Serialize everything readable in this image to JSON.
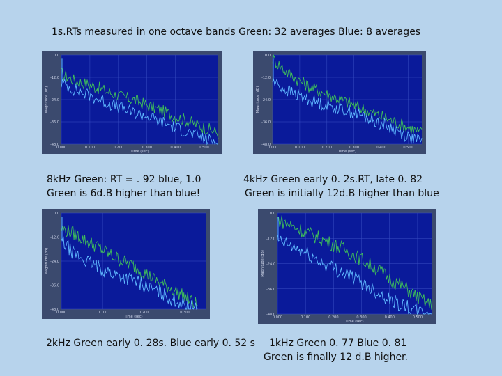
{
  "title": "1s.RTs measured in one octave bands   Green: 32 averages    Blue: 8 averages",
  "captions": {
    "p1": [
      "8kHz Green: RT = . 92 blue, 1.0",
      "Green is 6d.B higher than blue!"
    ],
    "p2": [
      "4kHz Green early 0. 2s.RT, late 0. 82",
      "Green is initially 12d.B higher than blue"
    ],
    "p3": [
      "2kHz Green early 0. 28s. Blue early 0. 52 s"
    ],
    "p4": [
      "1kHz Green 0. 77 Blue 0. 81",
      "Green is finally 12 d.B higher."
    ]
  },
  "colors": {
    "background": "#b7d3ec",
    "panel_frame": "#3b4a6e",
    "plot_bg": "#0a1a9a",
    "grid": "#3a4fc4",
    "green_series": "#3fbf5a",
    "blue_series": "#5fb8ff"
  },
  "chart_data": [
    {
      "type": "line",
      "ylabel": "Magnitude (dB)",
      "xlabel": "Time (sec)",
      "ylim": [
        -48,
        0
      ],
      "xlim": [
        0,
        0.55
      ],
      "x_ticks": [
        "0.000",
        "0.100",
        "0.200",
        "0.300",
        "0.400",
        "0.500"
      ],
      "y_ticks": [
        "0.0",
        "-12.0",
        "-24.0",
        "-36.0",
        "-48.0"
      ],
      "series": [
        {
          "color": "green",
          "x": [
            0,
            0.05,
            0.1,
            0.15,
            0.2,
            0.25,
            0.3,
            0.35,
            0.4,
            0.45,
            0.5,
            0.55
          ],
          "y": [
            -10,
            -14,
            -16,
            -19,
            -22,
            -24,
            -27,
            -30,
            -33,
            -36,
            -39,
            -42
          ]
        },
        {
          "color": "blue",
          "x": [
            0,
            0.05,
            0.1,
            0.15,
            0.2,
            0.25,
            0.3,
            0.35,
            0.4,
            0.45,
            0.5,
            0.55
          ],
          "y": [
            -15,
            -19,
            -22,
            -25,
            -28,
            -31,
            -33,
            -36,
            -39,
            -42,
            -45,
            -47
          ]
        }
      ]
    },
    {
      "type": "line",
      "ylabel": "Magnitude (dB)",
      "xlabel": "Time (sec)",
      "ylim": [
        -48,
        0
      ],
      "xlim": [
        0,
        0.55
      ],
      "x_ticks": [
        "0.000",
        "0.100",
        "0.200",
        "0.300",
        "0.400",
        "0.500"
      ],
      "y_ticks": [
        "0.0",
        "-12.0",
        "-24.0",
        "-36.0",
        "-48.0"
      ],
      "series": [
        {
          "color": "green",
          "x": [
            0,
            0.05,
            0.1,
            0.15,
            0.2,
            0.25,
            0.3,
            0.35,
            0.4,
            0.45,
            0.5,
            0.55
          ],
          "y": [
            -2,
            -9,
            -14,
            -18,
            -21,
            -24,
            -27,
            -30,
            -33,
            -36,
            -39,
            -42
          ]
        },
        {
          "color": "blue",
          "x": [
            0,
            0.05,
            0.1,
            0.15,
            0.2,
            0.25,
            0.3,
            0.35,
            0.4,
            0.45,
            0.5,
            0.55
          ],
          "y": [
            -14,
            -19,
            -22,
            -25,
            -27,
            -29,
            -31,
            -34,
            -37,
            -40,
            -44,
            -47
          ]
        }
      ]
    },
    {
      "type": "line",
      "ylabel": "Magnitude (dB)",
      "xlabel": "Time (sec)",
      "ylim": [
        -48,
        0
      ],
      "xlim": [
        0,
        0.35
      ],
      "x_ticks": [
        "0.000",
        "0.100",
        "0.200",
        "0.300"
      ],
      "y_ticks": [
        "0.0",
        "-12.0",
        "-24.0",
        "-36.0",
        "-48.0"
      ],
      "series": [
        {
          "color": "green",
          "x": [
            0,
            0.03,
            0.06,
            0.09,
            0.12,
            0.15,
            0.18,
            0.21,
            0.24,
            0.27,
            0.3,
            0.33
          ],
          "y": [
            -8,
            -10,
            -14,
            -17,
            -21,
            -24,
            -27,
            -31,
            -35,
            -38,
            -42,
            -46
          ]
        },
        {
          "color": "blue",
          "x": [
            0,
            0.03,
            0.06,
            0.09,
            0.12,
            0.15,
            0.18,
            0.21,
            0.24,
            0.27,
            0.3,
            0.33
          ],
          "y": [
            -14,
            -20,
            -24,
            -27,
            -30,
            -32,
            -34,
            -37,
            -40,
            -43,
            -46,
            -48
          ]
        }
      ]
    },
    {
      "type": "line",
      "ylabel": "Magnitude (dB)",
      "xlabel": "Time (sec)",
      "ylim": [
        -48,
        0
      ],
      "xlim": [
        0,
        0.55
      ],
      "x_ticks": [
        "0.000",
        "0.100",
        "0.200",
        "0.300",
        "0.400",
        "0.500"
      ],
      "y_ticks": [
        "0.0",
        "-12.0",
        "-24.0",
        "-36.0",
        "-48.0"
      ],
      "series": [
        {
          "color": "green",
          "x": [
            0,
            0.05,
            0.1,
            0.15,
            0.2,
            0.25,
            0.3,
            0.35,
            0.4,
            0.45,
            0.5,
            0.55
          ],
          "y": [
            -3,
            -6,
            -9,
            -12,
            -15,
            -18,
            -22,
            -26,
            -31,
            -35,
            -40,
            -44
          ]
        },
        {
          "color": "blue",
          "x": [
            0,
            0.05,
            0.1,
            0.15,
            0.2,
            0.25,
            0.3,
            0.35,
            0.4,
            0.45,
            0.5,
            0.55
          ],
          "y": [
            -13,
            -16,
            -19,
            -23,
            -26,
            -29,
            -33,
            -37,
            -41,
            -44,
            -47,
            -48
          ]
        }
      ]
    }
  ]
}
